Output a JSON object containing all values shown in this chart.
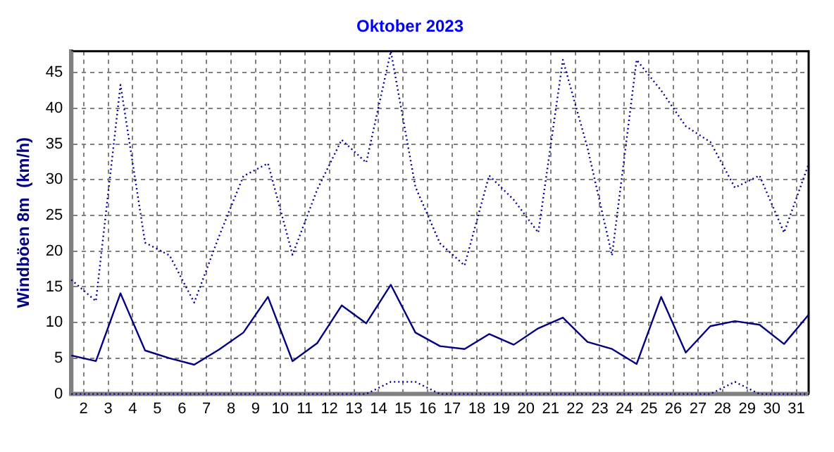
{
  "chart_data": {
    "type": "line",
    "title": "Oktober 2023",
    "ylabel": "Windböen 8m  (km/h)",
    "x": [
      1.5,
      2.5,
      3.5,
      4.5,
      5.5,
      6.5,
      7.5,
      8.5,
      9.5,
      10.5,
      11.5,
      12.5,
      13.5,
      14.5,
      15.5,
      16.5,
      17.5,
      18.5,
      19.5,
      20.5,
      21.5,
      22.5,
      23.5,
      24.5,
      25.5,
      26.5,
      27.5,
      28.5,
      29.5,
      30.5,
      31.5
    ],
    "xlim": [
      1.5,
      31.5
    ],
    "xticks": [
      2,
      3,
      4,
      5,
      6,
      7,
      8,
      9,
      10,
      11,
      12,
      13,
      14,
      15,
      16,
      17,
      18,
      19,
      20,
      21,
      22,
      23,
      24,
      25,
      26,
      27,
      28,
      29,
      30,
      31
    ],
    "ylim": [
      0,
      48
    ],
    "yticks": [
      0,
      5,
      10,
      15,
      20,
      25,
      30,
      35,
      40,
      45
    ],
    "grid": true,
    "legend": false,
    "marker": "none",
    "series": [
      {
        "color": "#0000a0",
        "line_style": "dotted",
        "values": [
          16.0,
          13.0,
          43.3,
          21.2,
          19.4,
          12.8,
          22,
          30.5,
          32.3,
          19.5,
          28.6,
          35.6,
          32.4,
          48,
          29,
          21.1,
          18.0,
          30.6,
          27.2,
          22.6,
          46.8,
          34.5,
          19.4,
          46.8,
          42.5,
          37.5,
          35.3,
          28.9,
          30.6,
          22.6,
          32.2
        ]
      },
      {
        "color": "#000080",
        "line_style": "solid",
        "values": [
          5.4,
          4.6,
          14.1,
          6.1,
          5.0,
          4.1,
          6.2,
          8.6,
          13.6,
          4.6,
          7.1,
          12.4,
          9.9,
          15.3,
          8.6,
          6.7,
          6.3,
          8.4,
          6.9,
          9.2,
          10.7,
          7.3,
          6.3,
          4.2,
          13.6,
          5.8,
          9.5,
          10.2,
          9.7,
          7.0,
          11.1
        ]
      },
      {
        "color": "#0000a0",
        "line_style": "dotted",
        "values": [
          0,
          0,
          0,
          0,
          0,
          0,
          0,
          0,
          0,
          0,
          0,
          0,
          0,
          1.7,
          1.7,
          0,
          0,
          0,
          0,
          0,
          0,
          0,
          0,
          0,
          0,
          0,
          0,
          1.7,
          0,
          0,
          0
        ]
      }
    ]
  }
}
